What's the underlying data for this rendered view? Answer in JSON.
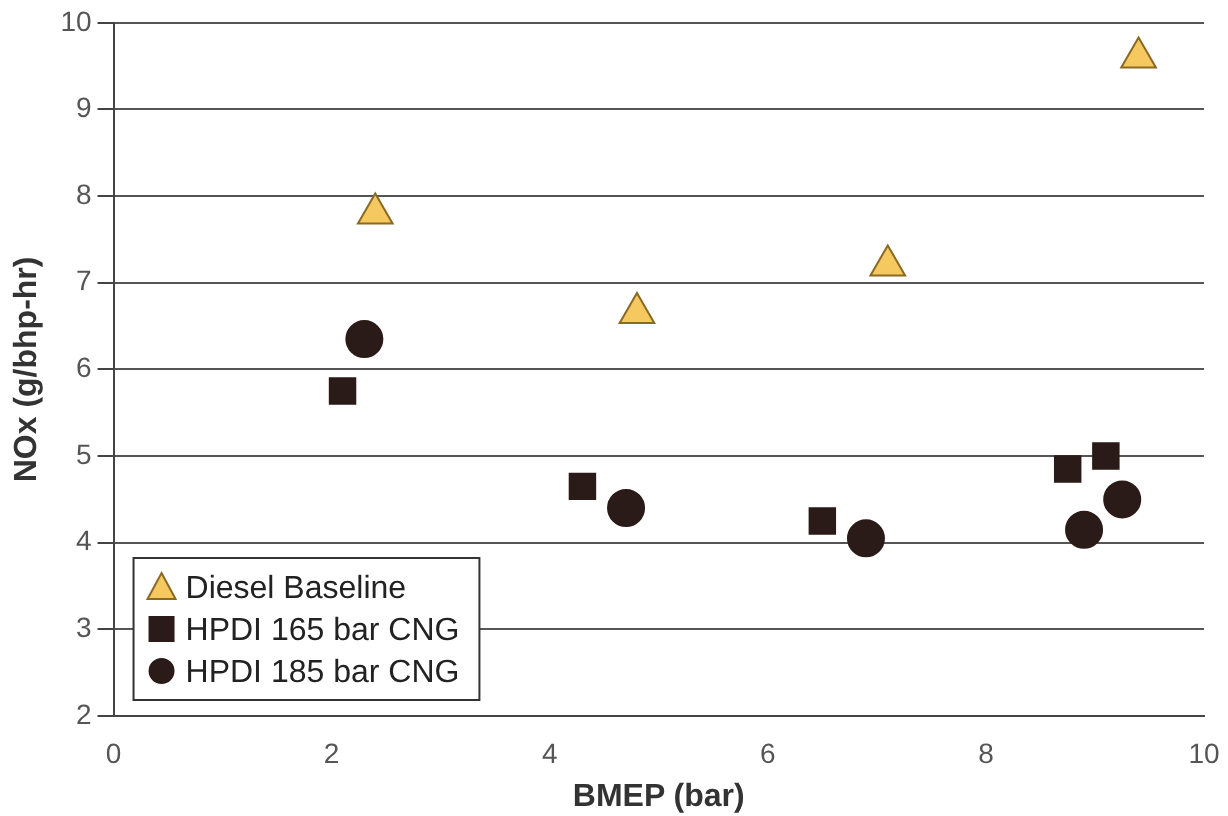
{
  "chart_data": {
    "type": "scatter",
    "xlabel": "BMEP (bar)",
    "ylabel": "NOx (g/bhp-hr)",
    "xlim": [
      0,
      10
    ],
    "xticks": [
      0,
      2,
      4,
      6,
      8,
      10
    ],
    "ylim": [
      2,
      10
    ],
    "yticks": [
      2,
      3,
      4,
      5,
      6,
      7,
      8,
      9,
      10
    ],
    "grid": "y",
    "legend": "bottom left",
    "series": [
      {
        "name": "Diesel Baseline",
        "color": "#f5c860",
        "marker": "triangle",
        "x": [
          2.4,
          4.8,
          7.1,
          9.4
        ],
        "values": [
          7.8,
          6.65,
          7.2,
          9.6
        ]
      },
      {
        "name": "HPDI 165 bar CNG",
        "color": "#2a1a18",
        "marker": "square",
        "x": [
          2.1,
          4.3,
          6.5,
          8.75,
          9.1
        ],
        "values": [
          5.75,
          4.65,
          4.25,
          4.85,
          5.0
        ]
      },
      {
        "name": "HPDI 185 bar CNG",
        "color": "#2a1a18",
        "marker": "circle",
        "x": [
          2.3,
          4.7,
          6.9,
          8.9,
          9.25
        ],
        "values": [
          6.35,
          4.4,
          4.05,
          4.15,
          4.5
        ]
      }
    ]
  }
}
